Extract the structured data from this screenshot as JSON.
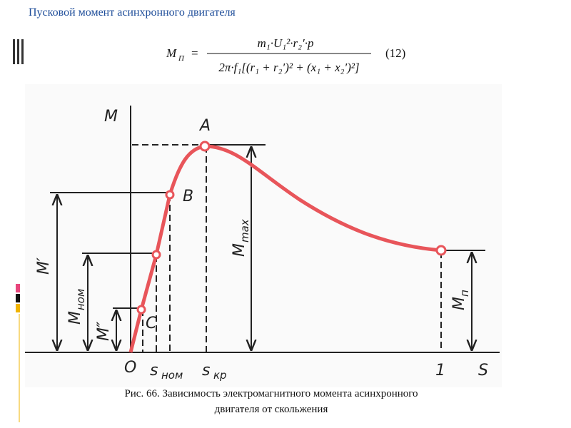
{
  "header": {
    "title": "Пусковой момент асинхронного двигателя"
  },
  "formula": {
    "lhs": "M",
    "lhs_sub": "П",
    "equals": "=",
    "numerator": "m₁·U₁²·r₂′·p",
    "denominator": "2π·f₁[(r₁ + r₂′)² + (x₁ + x₂′)²]",
    "number": "(12)"
  },
  "figure": {
    "labels": {
      "m_axis": "M",
      "s_axis": "S",
      "origin": "O",
      "a": "A",
      "b": "B",
      "c": "C",
      "one": "1",
      "s_nom": "s",
      "s_nom_sub": "ном",
      "s_kr": "s",
      "s_kr_sub": "кр",
      "m_prime": "M′",
      "m_nom": "M",
      "m_nom_sub": "ном",
      "m_dprime": "M″",
      "m_max": "M",
      "m_max_sub": "max",
      "m_p": "M",
      "m_p_sub": "п"
    }
  },
  "caption": {
    "line1": "Рис. 66. Зависимость электромагнитного момента асинхронного",
    "line2": "двигателя от скольжения"
  }
}
